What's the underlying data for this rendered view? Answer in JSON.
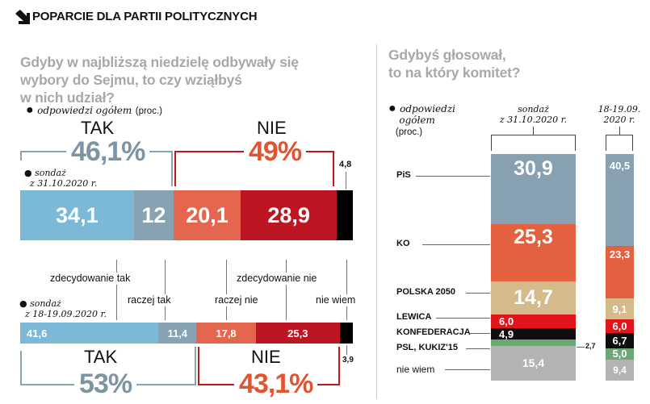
{
  "header": {
    "title": "POPARCIE DLA PARTII POLITYCZNYCH",
    "icon": "arrow-down-right-icon"
  },
  "left": {
    "question": [
      "Gdyby w najbliższą niedzielę odbywały się",
      "wybory do Sejmu, to czy wziąłbyś",
      "w nich udział?"
    ],
    "legend_italic": "odpowiedzi ogółem",
    "legend_unit": "(proc.)",
    "top": {
      "tak_label": "TAK",
      "tak_total": "46,1%",
      "nie_label": "NIE",
      "nie_total": "49%",
      "survey": [
        "sondaż",
        "z 31.10.2020 r."
      ],
      "nie_wiem_label": "4,8"
    },
    "bottom": {
      "tak_label": "TAK",
      "tak_total": "53%",
      "nie_label": "NIE",
      "nie_total": "43,1%",
      "survey": [
        "sondaż",
        "z 18-19.09.2020 r."
      ],
      "nie_wiem_label": "3,9"
    },
    "categories": [
      "zdecydowanie tak",
      "raczej tak",
      "raczej nie",
      "zdecydowanie nie",
      "nie wiem"
    ]
  },
  "right": {
    "question": [
      "Gdybyś głosował,",
      "to na który komitet?"
    ],
    "legend_italic": [
      "odpowiedzi",
      "ogółem"
    ],
    "legend_unit": "(proc.)",
    "col1_label": [
      "sondaż",
      "z 31.10.2020 r."
    ],
    "col2_label": [
      "18-19.09.",
      "2020 r."
    ],
    "parties": [
      "PiS",
      "KO",
      "POLSKA 2050",
      "LEWICA",
      "KONFEDERACJA",
      "PSL, KUKIZ'15",
      "nie wiem"
    ],
    "psl_outside_label": "2,7"
  },
  "chart_data": [
    {
      "type": "bar",
      "stacked": true,
      "orientation": "horizontal",
      "title": "Gdyby w najbliższą niedzielę odbywały się wybory do Sejmu, to czy wziąłbyś w nich udział?",
      "categories": [
        "zdecydowanie tak",
        "raczej tak",
        "raczej nie",
        "zdecydowanie nie",
        "nie wiem"
      ],
      "colors": [
        "#7cb9d7",
        "#87a2b3",
        "#e5664f",
        "#bd1622",
        "#000000"
      ],
      "series": [
        {
          "name": "sondaż z 31.10.2020 r.",
          "values": [
            34.1,
            12,
            20.1,
            28.9,
            4.8
          ],
          "labels": [
            "34,1",
            "12",
            "20,1",
            "28,9",
            ""
          ]
        },
        {
          "name": "sondaż z 18-19.09.2020 r.",
          "values": [
            41.6,
            11.4,
            17.8,
            25.3,
            3.9
          ],
          "labels": [
            "41,6",
            "11,4",
            "17,8",
            "25,3",
            ""
          ]
        }
      ]
    },
    {
      "type": "bar",
      "stacked": true,
      "orientation": "vertical",
      "title": "Gdybyś głosował, to na który komitet?",
      "categories": [
        "PiS",
        "KO",
        "POLSKA 2050",
        "LEWICA",
        "KONFEDERACJA",
        "PSL, KUKIZ'15",
        "nie wiem"
      ],
      "colors": [
        "#87a0b2",
        "#e3613f",
        "#d5ba8b",
        "#e2141c",
        "#0e0e0e",
        "#6ea776",
        "#b3b3b3"
      ],
      "series": [
        {
          "name": "sondaż z 31.10.2020 r.",
          "values": [
            30.9,
            25.3,
            14.7,
            6.0,
            4.9,
            2.7,
            15.4
          ],
          "labels": [
            "30,9",
            "25,3",
            "14,7",
            "6,0",
            "4,9",
            "",
            "15,4"
          ]
        },
        {
          "name": "18-19.09.2020 r.",
          "values": [
            40.5,
            23.3,
            9.1,
            6.0,
            6.7,
            5.0,
            9.4
          ],
          "labels": [
            "40,5",
            "23,3",
            "9,1",
            "6,0",
            "6,7",
            "5,0",
            "9,4"
          ]
        }
      ]
    }
  ]
}
